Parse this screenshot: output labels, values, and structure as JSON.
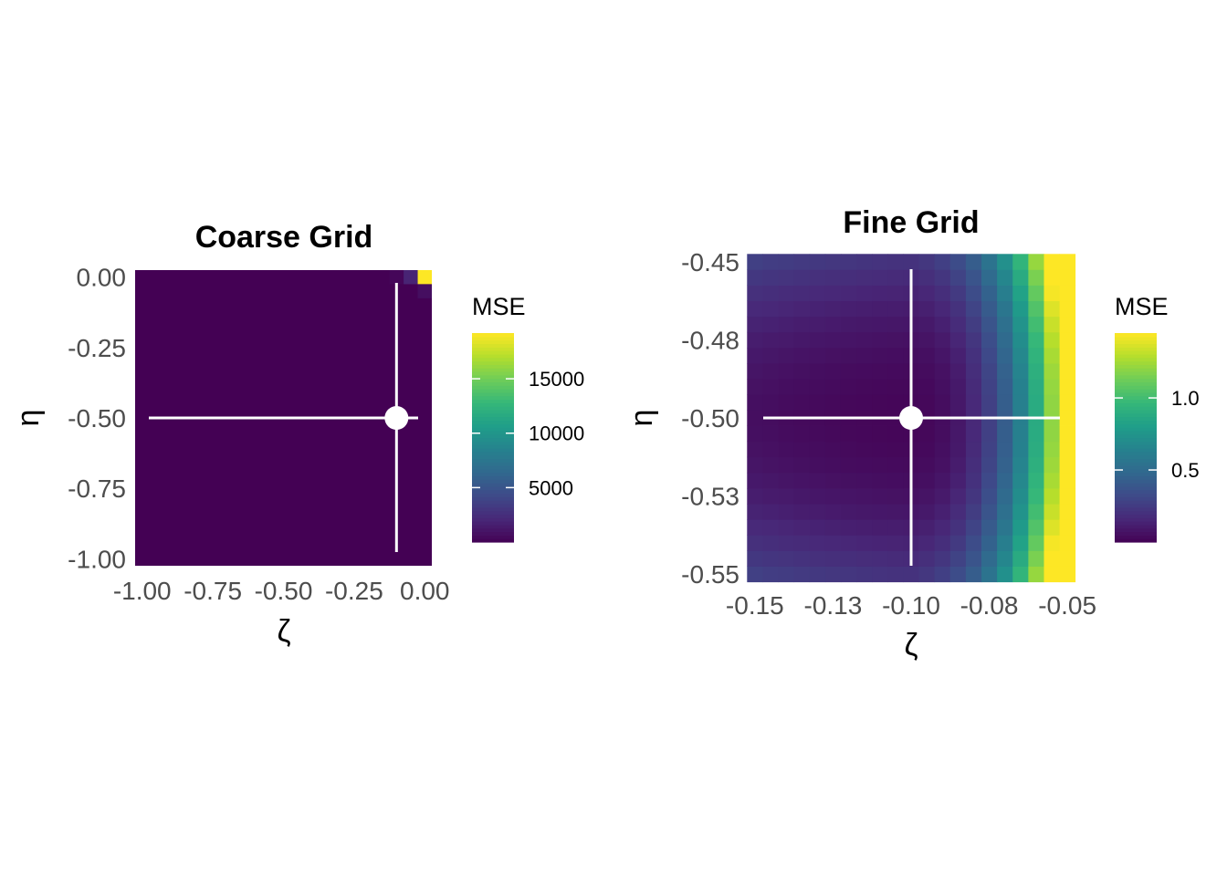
{
  "chart_data": [
    {
      "type": "heatmap",
      "title": "Coarse Grid",
      "xlabel": "ζ",
      "ylabel": "η",
      "legend_title": "MSE",
      "legend_position": "right",
      "colormap": "viridis",
      "grid": true,
      "xlim": [
        -1.025,
        0.025
      ],
      "ylim": [
        -1.025,
        0.025
      ],
      "x_ticks": [
        -1.0,
        -0.75,
        -0.5,
        -0.25,
        0.0
      ],
      "x_tick_labels": [
        "-1.00",
        "-0.75",
        "-0.50",
        "-0.25",
        "0.00"
      ],
      "y_ticks": [
        0.0,
        -0.25,
        -0.5,
        -0.75,
        -1.0
      ],
      "y_tick_labels": [
        "0.00",
        "-0.25",
        "-0.50",
        "-0.75",
        "-1.00"
      ],
      "cell_size": 0.05,
      "color_range": [
        0,
        19200
      ],
      "colorbar_ticks": [
        5000,
        10000,
        15000
      ],
      "colorbar_tick_labels": [
        "5000",
        "10000",
        "15000"
      ],
      "optimum": {
        "zeta": -0.1,
        "eta": -0.5
      },
      "cells": [
        {
          "zeta": 0.0,
          "eta": 0.0,
          "mse": 19200
        },
        {
          "zeta": -0.05,
          "eta": 0.0,
          "mse": 1900
        },
        {
          "zeta": 0.0,
          "eta": -0.05,
          "mse": 700
        },
        {
          "zeta": -0.1,
          "eta": 0.0,
          "mse": 300
        }
      ],
      "default_mse": 0
    },
    {
      "type": "heatmap",
      "title": "Fine Grid",
      "xlabel": "ζ",
      "ylabel": "η",
      "legend_title": "MSE",
      "legend_position": "right",
      "colormap": "viridis",
      "grid": true,
      "xlim": [
        -0.152,
        -0.048
      ],
      "ylim": [
        -0.552,
        -0.448
      ],
      "x_ticks": [
        -0.15,
        -0.125,
        -0.1,
        -0.075,
        -0.05
      ],
      "x_tick_labels": [
        "-0.15",
        "-0.13",
        "-0.10",
        "-0.08",
        "-0.05"
      ],
      "y_ticks": [
        -0.45,
        -0.475,
        -0.5,
        -0.525,
        -0.55
      ],
      "y_tick_labels": [
        "-0.45",
        "-0.48",
        "-0.50",
        "-0.53",
        "-0.55"
      ],
      "x_range": [
        -0.15,
        -0.05
      ],
      "y_range": [
        -0.55,
        -0.45
      ],
      "steps": 21,
      "color_range": [
        0,
        1.45
      ],
      "colorbar_ticks": [
        0.5,
        1.0
      ],
      "colorbar_tick_labels": [
        "0.5",
        "1.0"
      ],
      "optimum": {
        "zeta": -0.1,
        "eta": -0.5
      }
    }
  ]
}
